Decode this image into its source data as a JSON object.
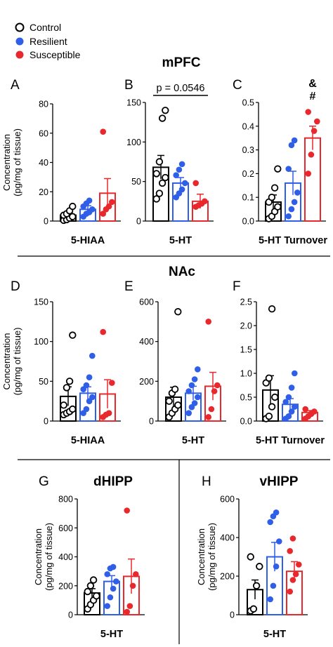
{
  "legend": [
    {
      "label": "Control",
      "color": "#000000",
      "fill": "#ffffff"
    },
    {
      "label": "Resilient",
      "color": "#2f5ee8",
      "fill": "#2f5ee8"
    },
    {
      "label": "Susceptible",
      "color": "#e8282d",
      "fill": "#e8282d"
    }
  ],
  "colors": {
    "control": "#000000",
    "resilient": "#2f5ee8",
    "susceptible": "#e8282d"
  },
  "regions": [
    "mPFC",
    "NAc",
    "dHIPP",
    "vHIPP"
  ],
  "ylabel_line1": "Concentration",
  "ylabel_line2": "(pg/mg of tissue)",
  "chart_data": [
    {
      "panel": "A",
      "type": "bar",
      "region": "mPFC",
      "category": "5-HIAA",
      "ylim": [
        0,
        80
      ],
      "yticks": [
        0,
        20,
        40,
        60,
        80
      ],
      "tick_labels": [
        "0",
        "20",
        "40",
        "60",
        "80"
      ],
      "ylabel": true,
      "series": [
        {
          "name": "Control",
          "mean": 4,
          "sem": 1.5,
          "points": [
            0.5,
            1,
            2,
            3,
            4,
            5,
            7,
            10
          ]
        },
        {
          "name": "Resilient",
          "mean": 8,
          "sem": 2.5,
          "points": [
            3,
            5,
            6,
            8,
            10,
            12,
            14
          ]
        },
        {
          "name": "Susceptible",
          "mean": 19,
          "sem": 10,
          "points": [
            5,
            8,
            10,
            13,
            61
          ]
        }
      ]
    },
    {
      "panel": "B",
      "type": "bar",
      "region": "mPFC",
      "category": "5-HT",
      "ylim": [
        0,
        150
      ],
      "yticks": [
        0,
        50,
        100,
        150
      ],
      "tick_labels": [
        "0",
        "50",
        "100",
        "150"
      ],
      "ylabel": false,
      "annotation": "p = 0.0546",
      "series": [
        {
          "name": "Control",
          "mean": 68,
          "sem": 15,
          "points": [
            28,
            35,
            48,
            55,
            60,
            75,
            130,
            140
          ]
        },
        {
          "name": "Resilient",
          "mean": 48,
          "sem": 7,
          "points": [
            30,
            35,
            40,
            48,
            58,
            65,
            72
          ]
        },
        {
          "name": "Susceptible",
          "mean": 25,
          "sem": 9,
          "points": [
            18,
            20,
            22,
            25,
            48
          ]
        }
      ]
    },
    {
      "panel": "C",
      "type": "bar",
      "region": "mPFC",
      "category": "5-HT Turnover",
      "ylim": [
        0,
        0.5
      ],
      "yticks": [
        0,
        0.1,
        0.2,
        0.3,
        0.4,
        0.5
      ],
      "tick_labels": [
        "0.0",
        "0.1",
        "0.2",
        "0.3",
        "0.4",
        "0.5"
      ],
      "ylabel": false,
      "annotation_lines": [
        "&",
        "#"
      ],
      "series": [
        {
          "name": "Control",
          "mean": 0.08,
          "sem": 0.03,
          "points": [
            0.01,
            0.02,
            0.04,
            0.06,
            0.08,
            0.1,
            0.14,
            0.22
          ]
        },
        {
          "name": "Resilient",
          "mean": 0.16,
          "sem": 0.05,
          "points": [
            0.02,
            0.05,
            0.08,
            0.12,
            0.22,
            0.32,
            0.34
          ]
        },
        {
          "name": "Susceptible",
          "mean": 0.35,
          "sem": 0.05,
          "points": [
            0.2,
            0.28,
            0.38,
            0.42,
            0.46
          ]
        }
      ]
    },
    {
      "panel": "D",
      "type": "bar",
      "region": "NAc",
      "category": "5-HIAA",
      "ylim": [
        0,
        150
      ],
      "yticks": [
        0,
        50,
        100,
        150
      ],
      "tick_labels": [
        "0",
        "50",
        "100",
        "150"
      ],
      "ylabel": true,
      "series": [
        {
          "name": "Control",
          "mean": 31,
          "sem": 12,
          "points": [
            8,
            10,
            12,
            15,
            20,
            42,
            50,
            108
          ]
        },
        {
          "name": "Resilient",
          "mean": 35,
          "sem": 8,
          "points": [
            10,
            15,
            25,
            30,
            40,
            45,
            55,
            82
          ]
        },
        {
          "name": "Susceptible",
          "mean": 34,
          "sem": 18,
          "points": [
            5,
            8,
            10,
            48,
            112
          ]
        }
      ]
    },
    {
      "panel": "E",
      "type": "bar",
      "region": "NAc",
      "category": "5-HT",
      "ylim": [
        0,
        600
      ],
      "yticks": [
        0,
        200,
        400,
        600
      ],
      "tick_labels": [
        "0",
        "200",
        "400",
        "600"
      ],
      "ylabel": false,
      "series": [
        {
          "name": "Control",
          "mean": 120,
          "sem": 50,
          "points": [
            20,
            40,
            60,
            80,
            100,
            140,
            160,
            550
          ]
        },
        {
          "name": "Resilient",
          "mean": 140,
          "sem": 35,
          "points": [
            40,
            70,
            90,
            120,
            150,
            180,
            210,
            260
          ]
        },
        {
          "name": "Susceptible",
          "mean": 175,
          "sem": 70,
          "points": [
            20,
            60,
            150,
            180,
            500
          ]
        }
      ]
    },
    {
      "panel": "F",
      "type": "bar",
      "region": "NAc",
      "category": "5-HT Turnover",
      "ylim": [
        0,
        2.5
      ],
      "yticks": [
        0,
        0.5,
        1.0,
        1.5,
        2.0,
        2.5
      ],
      "tick_labels": [
        "0.0",
        "0.5",
        "1.0",
        "1.5",
        "2.0",
        "2.5"
      ],
      "ylabel": false,
      "series": [
        {
          "name": "Control",
          "mean": 0.65,
          "sem": 0.3,
          "points": [
            0.05,
            0.1,
            0.3,
            0.5,
            0.8,
            0.9,
            2.35
          ]
        },
        {
          "name": "Resilient",
          "mean": 0.35,
          "sem": 0.12,
          "points": [
            0.05,
            0.1,
            0.2,
            0.3,
            0.4,
            0.5,
            0.7,
            1.0
          ]
        },
        {
          "name": "Susceptible",
          "mean": 0.18,
          "sem": 0.04,
          "points": [
            0.05,
            0.1,
            0.15,
            0.2,
            0.25
          ]
        }
      ]
    },
    {
      "panel": "G",
      "type": "bar",
      "region": "dHIPP",
      "category": "5-HT",
      "ylim": [
        0,
        800
      ],
      "yticks": [
        0,
        200,
        400,
        600,
        800
      ],
      "tick_labels": [
        "0",
        "200",
        "400",
        "600",
        "800"
      ],
      "ylabel": true,
      "series": [
        {
          "name": "Control",
          "mean": 150,
          "sem": 30,
          "points": [
            40,
            70,
            100,
            130,
            160,
            200,
            240
          ]
        },
        {
          "name": "Resilient",
          "mean": 230,
          "sem": 40,
          "points": [
            60,
            120,
            180,
            230,
            280,
            320,
            330
          ]
        },
        {
          "name": "Susceptible",
          "mean": 265,
          "sem": 120,
          "points": [
            20,
            60,
            200,
            280,
            720
          ]
        }
      ]
    },
    {
      "panel": "H",
      "type": "bar",
      "region": "vHIPP",
      "category": "5-HT",
      "ylim": [
        0,
        600
      ],
      "yticks": [
        0,
        200,
        400,
        600
      ],
      "tick_labels": [
        "0",
        "200",
        "400",
        "600"
      ],
      "ylabel": true,
      "series": [
        {
          "name": "Control",
          "mean": 130,
          "sem": 50,
          "points": [
            20,
            30,
            150,
            250,
            300
          ]
        },
        {
          "name": "Resilient",
          "mean": 300,
          "sem": 75,
          "points": [
            80,
            150,
            250,
            380,
            480,
            510,
            530
          ]
        },
        {
          "name": "Susceptible",
          "mean": 225,
          "sem": 50,
          "points": [
            120,
            180,
            210,
            260,
            330,
            395
          ]
        }
      ]
    }
  ]
}
